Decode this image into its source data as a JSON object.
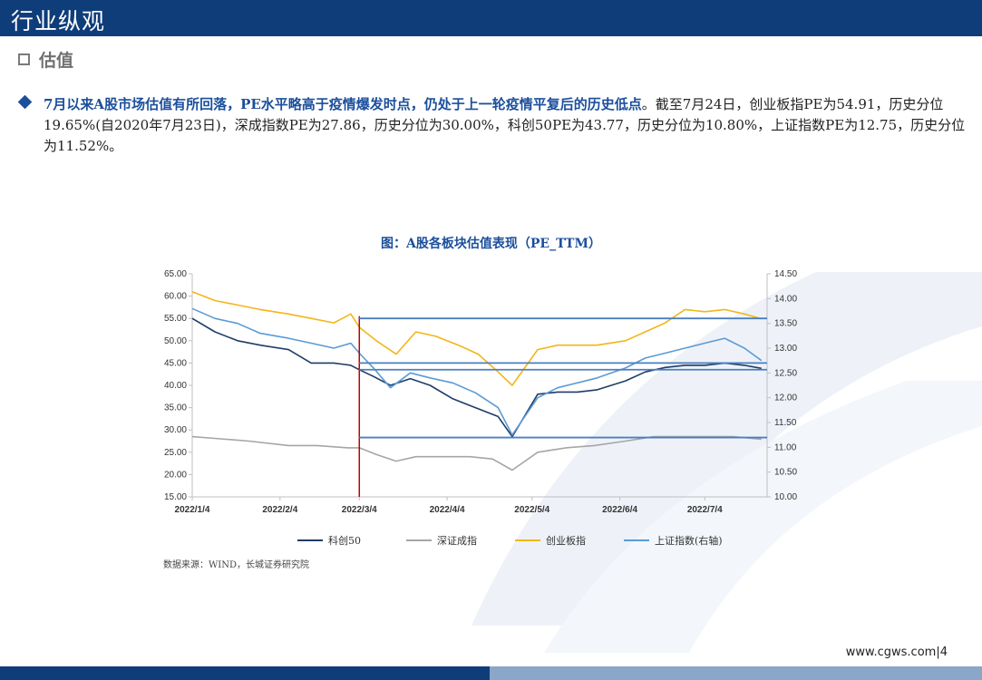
{
  "header": {
    "title": "行业纵观"
  },
  "section": {
    "label": "估值"
  },
  "bullet": {
    "highlight": "7月以来A股市场估值有所回落，PE水平略高于疫情爆发时点，仍处于上一轮疫情平复后的历史低点",
    "body": "。截至7月24日，创业板指PE为54.91，历史分位19.65%(自2020年7月23日)，深成指数PE为27.86，历史分位为30.00%，科创50PE为43.77，历史分位为10.80%，上证指数PE为12.75，历史分位为11.52%。"
  },
  "source": "数据来源：WIND，长城证券研究院",
  "footer": {
    "url": "www.cgws.com",
    "page": "4"
  },
  "colors": {
    "header": "#0f3d7a",
    "accent": "#1b4f9c",
    "kc50": "#1f3c68",
    "szcz": "#a6a6a6",
    "cyb": "#f2b619",
    "shzs": "#5b9bd5",
    "marker": "#c00000",
    "refline": "#4a7fc0"
  },
  "chart_data": {
    "type": "line",
    "title": "图：A股各板块估值表现（PE_TTM）",
    "x_ticks": [
      "2022/1/4",
      "2022/2/4",
      "2022/3/4",
      "2022/4/4",
      "2022/5/4",
      "2022/6/4",
      "2022/7/4"
    ],
    "left_axis": {
      "min": 15,
      "max": 65,
      "ticks": [
        "15.00",
        "20.00",
        "25.00",
        "30.00",
        "35.00",
        "40.00",
        "45.00",
        "50.00",
        "55.00",
        "60.00",
        "65.00"
      ]
    },
    "right_axis": {
      "min": 10,
      "max": 14.5,
      "ticks": [
        "10.00",
        "10.50",
        "11.00",
        "11.50",
        "12.00",
        "12.50",
        "13.00",
        "13.50",
        "14.00",
        "14.50"
      ]
    },
    "series": [
      {
        "name": "科创50",
        "axis": "left",
        "x": [
          "2022/1/4",
          "2022/1/12",
          "2022/1/20",
          "2022/1/28",
          "2022/2/7",
          "2022/2/15",
          "2022/2/23",
          "2022/3/1",
          "2022/3/4",
          "2022/3/9",
          "2022/3/15",
          "2022/3/22",
          "2022/3/29",
          "2022/4/6",
          "2022/4/14",
          "2022/4/22",
          "2022/4/27",
          "2022/5/6",
          "2022/5/13",
          "2022/5/20",
          "2022/5/27",
          "2022/6/6",
          "2022/6/13",
          "2022/6/20",
          "2022/6/27",
          "2022/7/4",
          "2022/7/11",
          "2022/7/18",
          "2022/7/24"
        ],
        "values": [
          55,
          52,
          50,
          49,
          48,
          45,
          45,
          44.5,
          43.5,
          42,
          40,
          41.5,
          40,
          37,
          35,
          33,
          28.5,
          38,
          38.5,
          38.5,
          39,
          41,
          43,
          44,
          44.5,
          44.5,
          45,
          44.5,
          43.8
        ]
      },
      {
        "name": "深证成指",
        "axis": "left",
        "x": [
          "2022/1/4",
          "2022/1/14",
          "2022/1/24",
          "2022/2/7",
          "2022/2/17",
          "2022/2/28",
          "2022/3/4",
          "2022/3/10",
          "2022/3/17",
          "2022/3/24",
          "2022/3/31",
          "2022/4/12",
          "2022/4/20",
          "2022/4/27",
          "2022/5/6",
          "2022/5/16",
          "2022/5/26",
          "2022/6/6",
          "2022/6/16",
          "2022/6/27",
          "2022/7/5",
          "2022/7/14",
          "2022/7/24"
        ],
        "values": [
          28.5,
          28,
          27.5,
          26.5,
          26.5,
          26,
          26,
          24.5,
          23,
          24,
          24,
          24,
          23.5,
          21,
          25,
          26,
          26.5,
          27.5,
          28.5,
          28.5,
          28.5,
          28.5,
          27.9
        ]
      },
      {
        "name": "创业板指",
        "axis": "left",
        "x": [
          "2022/1/4",
          "2022/1/12",
          "2022/1/20",
          "2022/1/28",
          "2022/2/7",
          "2022/2/15",
          "2022/2/23",
          "2022/3/1",
          "2022/3/4",
          "2022/3/10",
          "2022/3/17",
          "2022/3/24",
          "2022/3/31",
          "2022/4/8",
          "2022/4/15",
          "2022/4/22",
          "2022/4/27",
          "2022/5/6",
          "2022/5/13",
          "2022/5/20",
          "2022/5/27",
          "2022/6/6",
          "2022/6/13",
          "2022/6/20",
          "2022/6/27",
          "2022/7/4",
          "2022/7/11",
          "2022/7/18",
          "2022/7/24"
        ],
        "values": [
          61,
          59,
          58,
          57,
          56,
          55,
          54,
          56,
          53,
          50,
          47,
          52,
          51,
          49,
          47,
          43,
          40,
          48,
          49,
          49,
          49,
          50,
          52,
          54,
          57,
          56.5,
          57,
          56,
          54.9
        ]
      },
      {
        "name": "上证指数(右轴)",
        "axis": "right",
        "x": [
          "2022/1/4",
          "2022/1/12",
          "2022/1/20",
          "2022/1/28",
          "2022/2/7",
          "2022/2/15",
          "2022/2/23",
          "2022/3/1",
          "2022/3/4",
          "2022/3/9",
          "2022/3/15",
          "2022/3/22",
          "2022/3/29",
          "2022/4/6",
          "2022/4/14",
          "2022/4/22",
          "2022/4/27",
          "2022/5/6",
          "2022/5/13",
          "2022/5/20",
          "2022/5/27",
          "2022/6/6",
          "2022/6/13",
          "2022/6/20",
          "2022/6/27",
          "2022/7/4",
          "2022/7/11",
          "2022/7/18",
          "2022/7/24"
        ],
        "values": [
          13.8,
          13.6,
          13.5,
          13.3,
          13.2,
          13.1,
          13.0,
          13.1,
          12.9,
          12.6,
          12.2,
          12.5,
          12.4,
          12.3,
          12.1,
          11.8,
          11.25,
          12.0,
          12.2,
          12.3,
          12.4,
          12.6,
          12.8,
          12.9,
          13.0,
          13.1,
          13.2,
          13.0,
          12.75
        ]
      }
    ],
    "reference_lines_left": [
      55,
      45,
      43.5,
      28.3
    ],
    "reference_start": "2022/3/4",
    "marker_date": "2022/3/4",
    "legend_position": "bottom"
  }
}
